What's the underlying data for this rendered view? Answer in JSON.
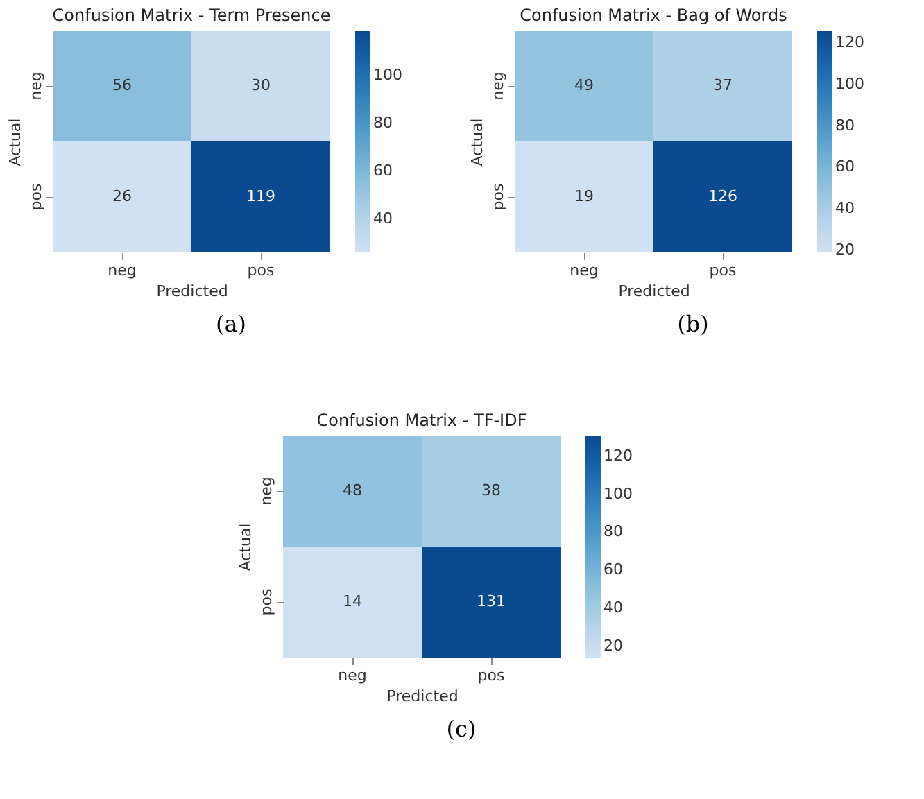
{
  "chart_data": [
    {
      "type": "heatmap",
      "title": "Confusion Matrix - Term Presence",
      "xlabel": "Predicted",
      "ylabel": "Actual",
      "categories": [
        "neg",
        "pos"
      ],
      "y_categories": [
        "neg",
        "pos"
      ],
      "cells": [
        [
          56,
          30
        ],
        [
          26,
          119
        ]
      ],
      "clim": [
        26,
        119
      ],
      "cticks": [
        40,
        60,
        80,
        100
      ],
      "data_labels": true,
      "annotations": [
        "(a)"
      ]
    },
    {
      "type": "heatmap",
      "title": "Confusion Matrix - Bag of Words",
      "xlabel": "Predicted",
      "ylabel": "Actual",
      "categories": [
        "neg",
        "pos"
      ],
      "y_categories": [
        "neg",
        "pos"
      ],
      "cells": [
        [
          49,
          37
        ],
        [
          19,
          126
        ]
      ],
      "clim": [
        19,
        126
      ],
      "cticks": [
        20,
        40,
        60,
        80,
        100,
        120
      ],
      "data_labels": true,
      "annotations": [
        "(b)"
      ]
    },
    {
      "type": "heatmap",
      "title": "Confusion Matrix - TF-IDF",
      "xlabel": "Predicted",
      "ylabel": "Actual",
      "categories": [
        "neg",
        "pos"
      ],
      "y_categories": [
        "neg",
        "pos"
      ],
      "cells": [
        [
          48,
          38
        ],
        [
          14,
          131
        ]
      ],
      "clim": [
        14,
        131
      ],
      "cticks": [
        20,
        40,
        60,
        80,
        100,
        120
      ],
      "data_labels": true,
      "annotations": [
        "(c)"
      ]
    }
  ]
}
